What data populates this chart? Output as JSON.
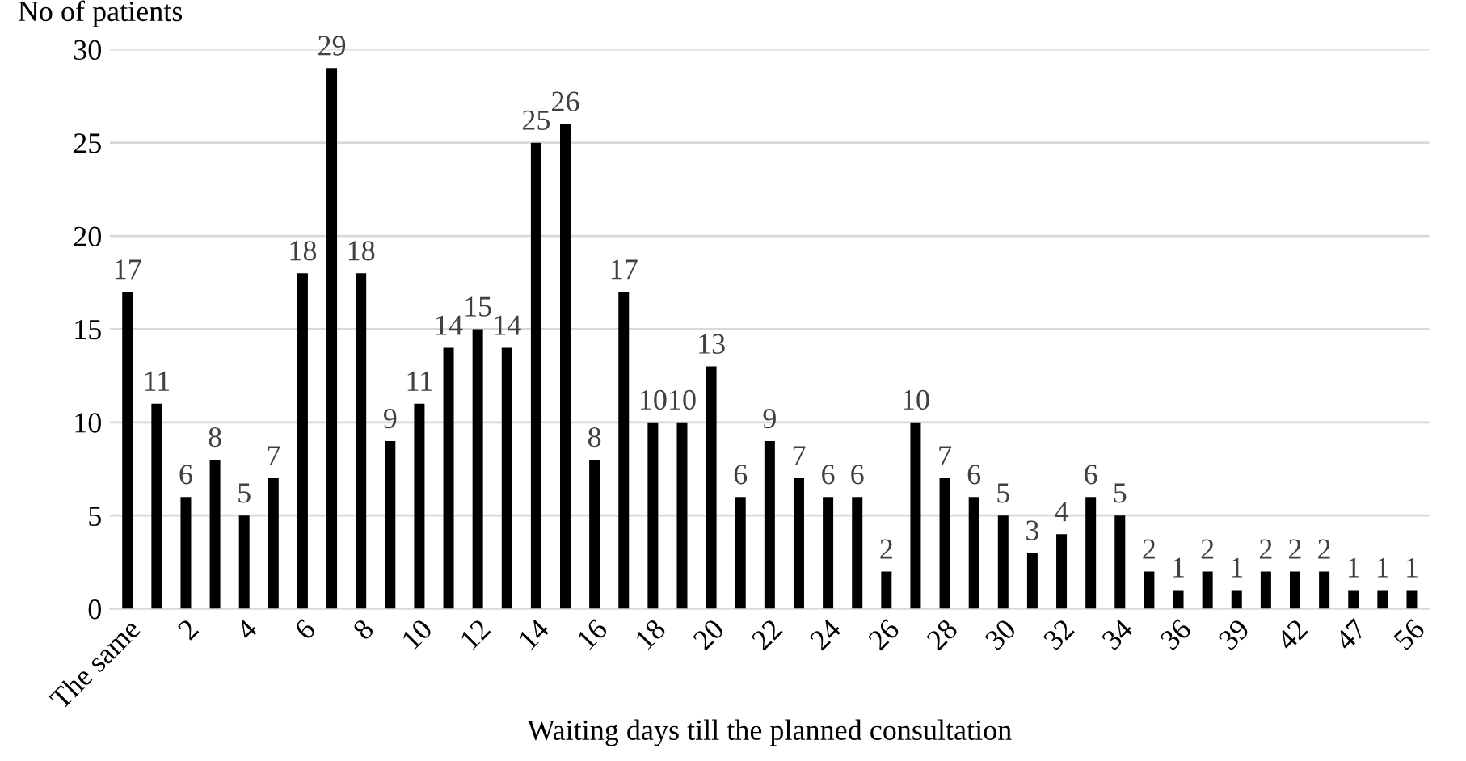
{
  "chart_data": {
    "type": "bar",
    "ylabel": "No of patients",
    "xlabel": "Waiting days till the planned consultation",
    "categories": [
      "The same",
      null,
      "2",
      null,
      "4",
      null,
      "6",
      null,
      "8",
      null,
      "10",
      null,
      "12",
      null,
      "14",
      null,
      "16",
      null,
      "18",
      null,
      "20",
      null,
      "22",
      null,
      "24",
      null,
      "26",
      null,
      "28",
      null,
      "30",
      null,
      "32",
      null,
      "34",
      null,
      "36",
      null,
      "39",
      null,
      "42",
      null,
      "47",
      null,
      "56"
    ],
    "values": [
      17,
      11,
      6,
      8,
      5,
      7,
      18,
      29,
      18,
      9,
      11,
      14,
      15,
      14,
      25,
      26,
      8,
      17,
      10,
      10,
      13,
      6,
      9,
      7,
      6,
      6,
      2,
      10,
      7,
      6,
      5,
      3,
      4,
      6,
      5,
      2,
      1,
      2,
      1,
      2,
      2,
      2,
      1,
      1,
      1
    ],
    "color": "#000000",
    "ylim": [
      0,
      30
    ],
    "yticks": [
      0,
      5,
      10,
      15,
      20,
      25,
      30
    ],
    "grid": "y",
    "data_labels": true
  }
}
